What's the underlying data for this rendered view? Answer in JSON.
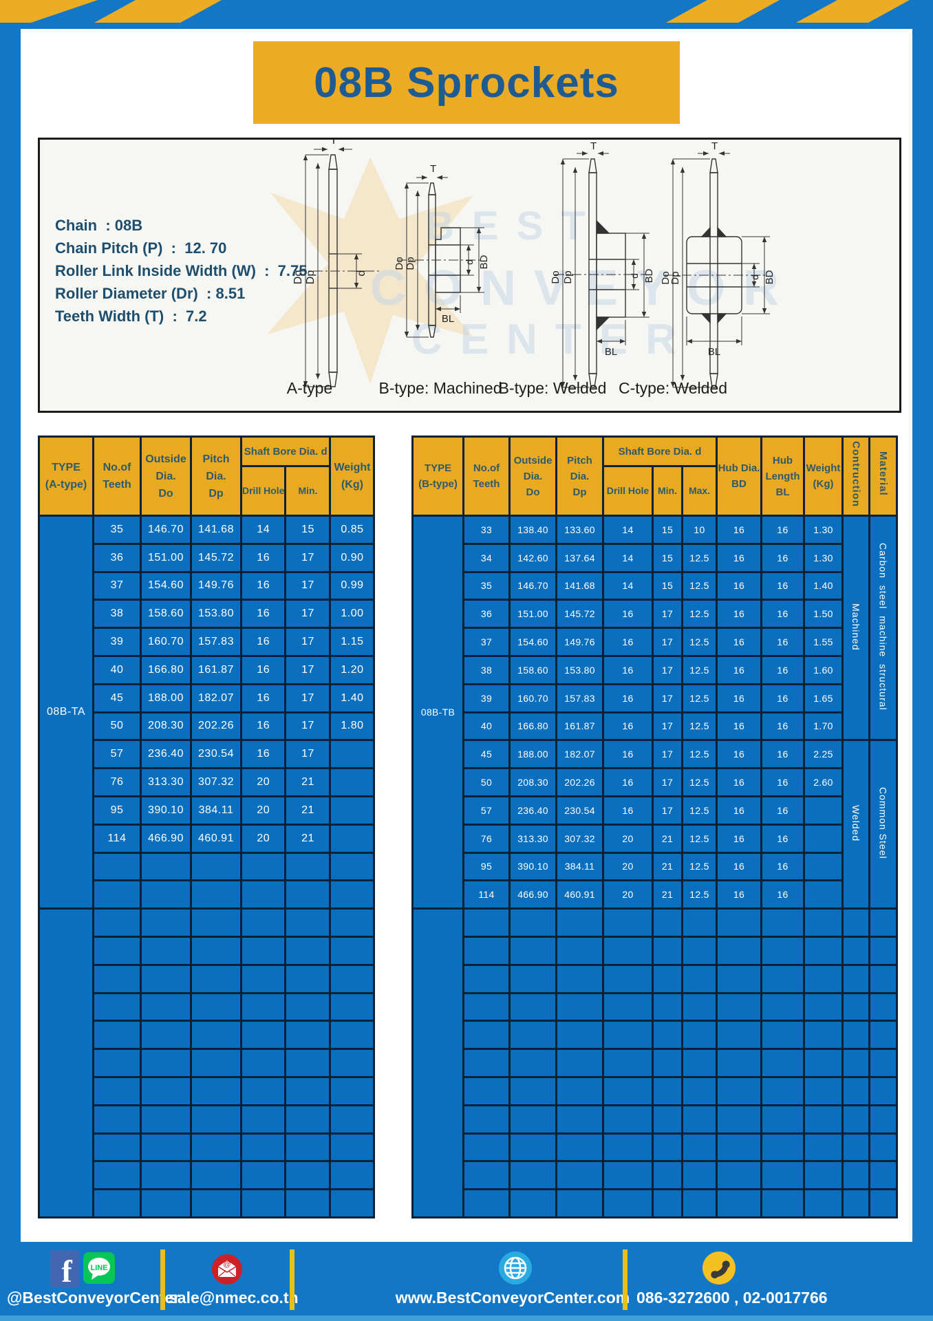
{
  "title": "08B Sprockets",
  "specs": {
    "lines": [
      "Chain  : 08B",
      "Chain Pitch (P)  :  12. 70",
      "Roller Link Inside Width (W)  :  7.75",
      "Roller Diameter (Dr)  : 8.51",
      "Teeth Width (T)  :  7.2"
    ]
  },
  "diagram": {
    "drawing_labels": [
      "A-type",
      "B-type: Machined",
      "B-type: Welded",
      "C-type: Welded"
    ],
    "dimension_labels": [
      "T",
      "Do",
      "Dp",
      "d",
      "BD",
      "BL"
    ],
    "watermark": [
      "BEST",
      "CONVEYOR",
      "CENTER"
    ]
  },
  "table_a": {
    "type_label": "08B-TA",
    "head": {
      "type": [
        "TYPE",
        "(A-type)"
      ],
      "teeth": [
        "No.of",
        "Teeth"
      ],
      "outside": [
        "Outside",
        "Dia.",
        "Do"
      ],
      "pitch": [
        "Pitch Dia.",
        "Dp"
      ],
      "shaft": "Shaft Bore Dia. d",
      "drill": "Drill Hole",
      "min": "Min.",
      "weight": [
        "Weight",
        "(Kg)"
      ]
    },
    "rows": [
      [
        "35",
        "146.70",
        "141.68",
        "14",
        "15",
        "0.85"
      ],
      [
        "36",
        "151.00",
        "145.72",
        "16",
        "17",
        "0.90"
      ],
      [
        "37",
        "154.60",
        "149.76",
        "16",
        "17",
        "0.99"
      ],
      [
        "38",
        "158.60",
        "153.80",
        "16",
        "17",
        "1.00"
      ],
      [
        "39",
        "160.70",
        "157.83",
        "16",
        "17",
        "1.15"
      ],
      [
        "40",
        "166.80",
        "161.87",
        "16",
        "17",
        "1.20"
      ],
      [
        "45",
        "188.00",
        "182.07",
        "16",
        "17",
        "1.40"
      ],
      [
        "50",
        "208.30",
        "202.26",
        "16",
        "17",
        "1.80"
      ],
      [
        "57",
        "236.40",
        "230.54",
        "16",
        "17",
        ""
      ],
      [
        "76",
        "313.30",
        "307.32",
        "20",
        "21",
        ""
      ],
      [
        "95",
        "390.10",
        "384.11",
        "20",
        "21",
        ""
      ],
      [
        "114",
        "466.90",
        "460.91",
        "20",
        "21",
        ""
      ]
    ],
    "empty_rows_section1": 2,
    "empty_rows_section2": 11
  },
  "table_b": {
    "type_label": "08B-TB",
    "head": {
      "type": [
        "TYPE",
        "(B-type)"
      ],
      "teeth": [
        "No.of",
        "Teeth"
      ],
      "outside": [
        "Outside",
        "Dia.",
        "Do"
      ],
      "pitch": [
        "Pitch Dia.",
        "Dp"
      ],
      "shaft": "Shaft Bore Dia. d",
      "drill": "Drill Hole",
      "min": "Min.",
      "max": "Max.",
      "hub_dia": [
        "Hub Dia.",
        "BD"
      ],
      "hub_len": [
        "Hub",
        "Length",
        "BL"
      ],
      "weight": [
        "Weight",
        "(Kg)"
      ],
      "construction": "Contruction",
      "material": "Material"
    },
    "rows": [
      [
        "33",
        "138.40",
        "133.60",
        "14",
        "15",
        "10",
        "16",
        "16",
        "1.30"
      ],
      [
        "34",
        "142.60",
        "137.64",
        "14",
        "15",
        "12.5",
        "16",
        "16",
        "1.30"
      ],
      [
        "35",
        "146.70",
        "141.68",
        "14",
        "15",
        "12.5",
        "16",
        "16",
        "1.40"
      ],
      [
        "36",
        "151.00",
        "145.72",
        "16",
        "17",
        "12.5",
        "16",
        "16",
        "1.50"
      ],
      [
        "37",
        "154.60",
        "149.76",
        "16",
        "17",
        "12.5",
        "16",
        "16",
        "1.55"
      ],
      [
        "38",
        "158.60",
        "153.80",
        "16",
        "17",
        "12.5",
        "16",
        "16",
        "1.60"
      ],
      [
        "39",
        "160.70",
        "157.83",
        "16",
        "17",
        "12.5",
        "16",
        "16",
        "1.65"
      ],
      [
        "40",
        "166.80",
        "161.87",
        "16",
        "17",
        "12.5",
        "16",
        "16",
        "1.70"
      ],
      [
        "45",
        "188.00",
        "182.07",
        "16",
        "17",
        "12.5",
        "16",
        "16",
        "2.25"
      ],
      [
        "50",
        "208.30",
        "202.26",
        "16",
        "17",
        "12.5",
        "16",
        "16",
        "2.60"
      ],
      [
        "57",
        "236.40",
        "230.54",
        "16",
        "17",
        "12.5",
        "16",
        "16",
        ""
      ],
      [
        "76",
        "313.30",
        "307.32",
        "20",
        "21",
        "12.5",
        "16",
        "16",
        ""
      ],
      [
        "95",
        "390.10",
        "384.11",
        "20",
        "21",
        "12.5",
        "16",
        "16",
        ""
      ],
      [
        "114",
        "466.90",
        "460.91",
        "20",
        "21",
        "12.5",
        "16",
        "16",
        ""
      ]
    ],
    "construction_groups": [
      {
        "label": "Machined",
        "span": 8
      },
      {
        "label": "Welded",
        "span": 6
      }
    ],
    "material_groups": [
      {
        "label": "Carbon steel machine structural",
        "span": 8
      },
      {
        "label": "Common Steel",
        "span": 6
      }
    ],
    "empty_rows_section2": 11
  },
  "footer": {
    "social_label": "@BestConveyorCenter",
    "email": "sale@nmec.co.th",
    "website": "www.BestConveyorCenter.com",
    "phones": "086-3272600 , 02-0017766",
    "icons": [
      "facebook-icon",
      "line-icon",
      "email-icon",
      "globe-icon",
      "phone-icon"
    ]
  }
}
